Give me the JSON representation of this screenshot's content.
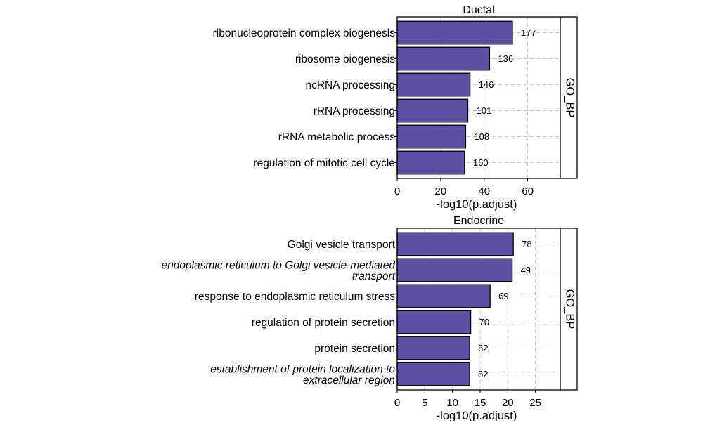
{
  "chart_data": [
    {
      "type": "bar",
      "orientation": "horizontal",
      "title": "Ductal",
      "facet_label": "GO_BP",
      "xlabel": "-log10(p.adjust)",
      "xlim": [
        0,
        75
      ],
      "xticks": [
        0,
        20,
        40,
        60
      ],
      "grid": "dashed",
      "bar_color": "#5d4fa3",
      "categories": [
        {
          "label": "ribonucleoprotein complex biogenesis",
          "lines": [
            "ribonucleoprotein complex biogenesis"
          ],
          "italic": false
        },
        {
          "label": "ribosome biogenesis",
          "lines": [
            "ribosome biogenesis"
          ],
          "italic": false
        },
        {
          "label": "ncRNA processing",
          "lines": [
            "ncRNA processing"
          ],
          "italic": false
        },
        {
          "label": "rRNA processing",
          "lines": [
            "rRNA processing"
          ],
          "italic": false
        },
        {
          "label": "rRNA metabolic process",
          "lines": [
            "rRNA metabolic process"
          ],
          "italic": false
        },
        {
          "label": "regulation of mitotic cell cycle",
          "lines": [
            "regulation of mitotic cell cycle"
          ],
          "italic": false
        }
      ],
      "values": [
        53,
        42.5,
        33.5,
        32.5,
        31.5,
        31
      ],
      "counts": [
        177,
        136,
        146,
        101,
        108,
        160
      ]
    },
    {
      "type": "bar",
      "orientation": "horizontal",
      "title": "Endocrine",
      "facet_label": "GO_BP",
      "xlabel": "-log10(p.adjust)",
      "xlim": [
        0,
        29.5
      ],
      "xticks": [
        0,
        5,
        10,
        15,
        20,
        25
      ],
      "grid": "dashed",
      "bar_color": "#5d4fa3",
      "categories": [
        {
          "label": "Golgi vesicle transport",
          "lines": [
            "Golgi vesicle transport"
          ],
          "italic": false
        },
        {
          "label": "endoplasmic reticulum to Golgi vesicle-mediated transport",
          "lines": [
            "endoplasmic reticulum to Golgi vesicle-mediated",
            "transport"
          ],
          "italic": true
        },
        {
          "label": "response to endoplasmic reticulum stress",
          "lines": [
            "response to endoplasmic reticulum stress"
          ],
          "italic": false
        },
        {
          "label": "regulation of protein secretion",
          "lines": [
            "regulation of protein secretion"
          ],
          "italic": false
        },
        {
          "label": "protein secretion",
          "lines": [
            "protein secretion"
          ],
          "italic": false
        },
        {
          "label": "establishment of protein localization to extracellular region",
          "lines": [
            "establishment of protein localization to",
            "extracellular region"
          ],
          "italic": true
        }
      ],
      "values": [
        21,
        20.8,
        16.8,
        13.3,
        13.1,
        13.1
      ],
      "counts": [
        78,
        49,
        69,
        70,
        82,
        82
      ]
    }
  ]
}
